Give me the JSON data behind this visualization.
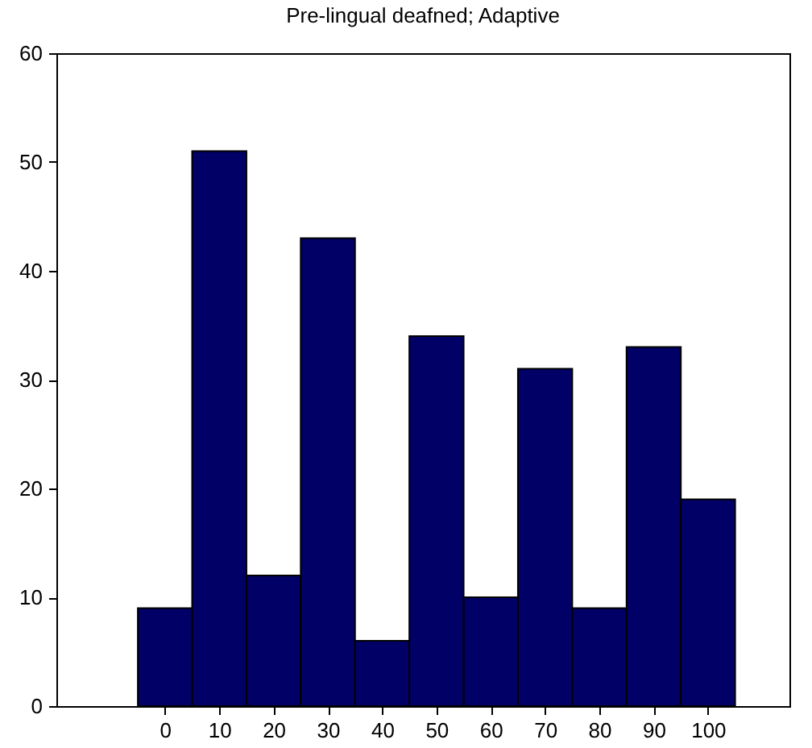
{
  "chart_data": {
    "type": "bar",
    "title": "Pre-lingual deafned; Adaptive",
    "x": [
      0,
      10,
      20,
      30,
      40,
      50,
      60,
      70,
      80,
      90,
      100
    ],
    "values": [
      9,
      51,
      12,
      43,
      6,
      34,
      10,
      31,
      9,
      33,
      19
    ],
    "color": "#000066",
    "xlim": [
      -20,
      115
    ],
    "xticks": [
      0,
      10,
      20,
      30,
      40,
      50,
      60,
      70,
      80,
      90,
      100
    ],
    "ylim": [
      0,
      60
    ],
    "yticks": [
      0,
      10,
      20,
      30,
      40,
      50,
      60
    ],
    "grid": false
  }
}
